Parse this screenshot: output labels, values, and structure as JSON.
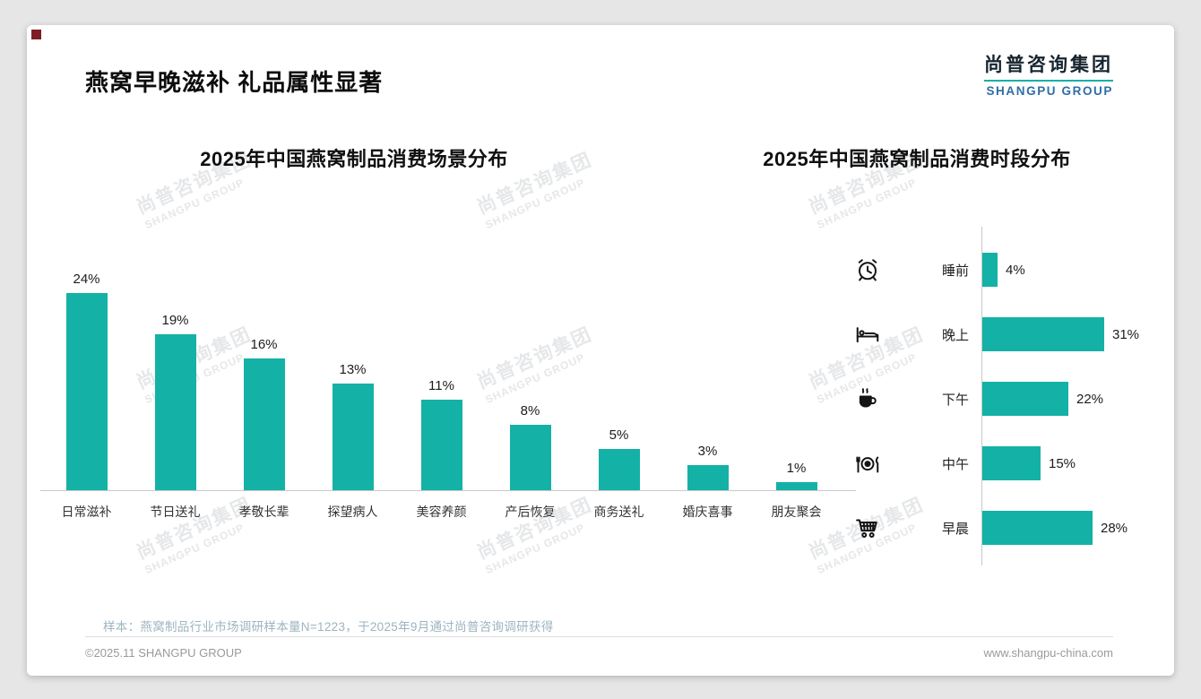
{
  "page": {
    "title": "燕窝早晚滋补 礼品属性显著",
    "logo": {
      "cn": "尚普咨询集团",
      "en": "SHANGPU GROUP"
    },
    "watermark": {
      "cn": "尚普咨询集团",
      "en": "SHANGPU GROUP"
    },
    "sample_note": "样本：燕窝制品行业市场调研样本量N=1223，于2025年9月通过尚普咨询调研获得",
    "footer": {
      "left": "©2025.11 SHANGPU GROUP",
      "right": "www.shangpu-china.com"
    },
    "accent_color": "#14b1a6",
    "logo_color": "#2f6da6"
  },
  "chart_data": [
    {
      "type": "bar",
      "title": "2025年中国燕窝制品消费场景分布",
      "categories": [
        "日常滋补",
        "节日送礼",
        "孝敬长辈",
        "探望病人",
        "美容养颜",
        "产后恢复",
        "商务送礼",
        "婚庆喜事",
        "朋友聚会"
      ],
      "values": [
        24,
        19,
        16,
        13,
        11,
        8,
        5,
        3,
        1
      ],
      "value_labels": [
        "24%",
        "19%",
        "16%",
        "13%",
        "11%",
        "8%",
        "5%",
        "3%",
        "1%"
      ],
      "unit": "%",
      "ylim": [
        0,
        25
      ],
      "bar_color": "#14b1a6",
      "grid": false,
      "legend": false
    },
    {
      "type": "bar-horizontal",
      "title": "2025年中国燕窝制品消费时段分布",
      "categories": [
        "睡前",
        "晚上",
        "下午",
        "中午",
        "早晨"
      ],
      "values": [
        4,
        31,
        22,
        15,
        28
      ],
      "value_labels": [
        "4%",
        "31%",
        "22%",
        "15%",
        "28%"
      ],
      "icons": [
        "alarm-clock-icon",
        "bed-icon",
        "coffee-cup-icon",
        "tableware-icon",
        "shopping-cart-icon"
      ],
      "unit": "%",
      "xlim": [
        0,
        35
      ],
      "bar_color": "#14b1a6",
      "grid": false,
      "legend": false
    }
  ]
}
